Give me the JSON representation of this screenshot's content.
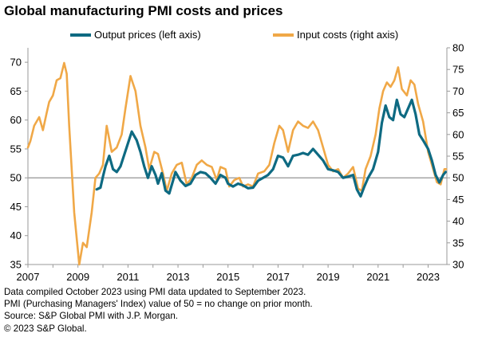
{
  "title": "Global manufacturing PMI costs and prices",
  "colors": {
    "output": "#0e6a82",
    "input": "#f0a847",
    "axis": "#9a9a9a",
    "ref": "#a6a6a6"
  },
  "legend": [
    {
      "label": "Output prices (left axis)",
      "color": "#0e6a82"
    },
    {
      "label": "Input costs (right axis)",
      "color": "#f0a847"
    }
  ],
  "chart_data": {
    "type": "line",
    "xlim": [
      2007.0,
      2023.75
    ],
    "x_ticks": [
      "2007",
      "2009",
      "2011",
      "2013",
      "2015",
      "2017",
      "2019",
      "2021",
      "2023"
    ],
    "y_left": {
      "ticks": [
        "35",
        "40",
        "45",
        "50",
        "55",
        "60",
        "65",
        "70"
      ],
      "ylim": [
        35,
        72.5
      ]
    },
    "y_right": {
      "ticks": [
        "30",
        "35",
        "40",
        "45",
        "50",
        "55",
        "60",
        "65",
        "70",
        "75",
        "80"
      ],
      "ylim": [
        30,
        80
      ]
    },
    "reference_line": 50,
    "series": [
      {
        "name": "Output prices (left axis)",
        "axis": "left",
        "color": "#0e6a82",
        "points": [
          [
            2009.75,
            48.0
          ],
          [
            2009.9,
            48.3
          ],
          [
            2010.0,
            50.2
          ],
          [
            2010.1,
            52.0
          ],
          [
            2010.25,
            53.8
          ],
          [
            2010.4,
            51.5
          ],
          [
            2010.55,
            51.0
          ],
          [
            2010.7,
            52.0
          ],
          [
            2010.85,
            54.0
          ],
          [
            2011.0,
            56.0
          ],
          [
            2011.15,
            58.0
          ],
          [
            2011.35,
            56.5
          ],
          [
            2011.5,
            54.5
          ],
          [
            2011.65,
            52.0
          ],
          [
            2011.8,
            50.0
          ],
          [
            2011.95,
            52.0
          ],
          [
            2012.1,
            50.5
          ],
          [
            2012.2,
            49.0
          ],
          [
            2012.35,
            50.8
          ],
          [
            2012.5,
            47.8
          ],
          [
            2012.65,
            47.3
          ],
          [
            2012.8,
            49.5
          ],
          [
            2012.9,
            51.0
          ],
          [
            2013.1,
            49.5
          ],
          [
            2013.3,
            48.6
          ],
          [
            2013.5,
            49.0
          ],
          [
            2013.7,
            50.5
          ],
          [
            2013.9,
            51.0
          ],
          [
            2014.1,
            50.8
          ],
          [
            2014.3,
            50.0
          ],
          [
            2014.5,
            49.0
          ],
          [
            2014.7,
            50.5
          ],
          [
            2014.9,
            50.0
          ],
          [
            2015.0,
            49.0
          ],
          [
            2015.2,
            48.5
          ],
          [
            2015.4,
            49.0
          ],
          [
            2015.6,
            48.7
          ],
          [
            2015.8,
            48.2
          ],
          [
            2016.0,
            48.3
          ],
          [
            2016.2,
            49.5
          ],
          [
            2016.4,
            50.0
          ],
          [
            2016.6,
            50.5
          ],
          [
            2016.8,
            51.5
          ],
          [
            2017.0,
            53.8
          ],
          [
            2017.2,
            53.5
          ],
          [
            2017.4,
            52.0
          ],
          [
            2017.6,
            53.8
          ],
          [
            2017.8,
            54.0
          ],
          [
            2018.0,
            54.3
          ],
          [
            2018.2,
            54.0
          ],
          [
            2018.4,
            55.0
          ],
          [
            2018.6,
            54.0
          ],
          [
            2018.8,
            53.0
          ],
          [
            2019.0,
            51.5
          ],
          [
            2019.2,
            51.3
          ],
          [
            2019.4,
            51.0
          ],
          [
            2019.6,
            50.0
          ],
          [
            2019.8,
            50.2
          ],
          [
            2020.0,
            50.5
          ],
          [
            2020.15,
            48.0
          ],
          [
            2020.3,
            46.8
          ],
          [
            2020.45,
            48.5
          ],
          [
            2020.6,
            50.0
          ],
          [
            2020.8,
            51.5
          ],
          [
            2021.0,
            54.5
          ],
          [
            2021.15,
            59.5
          ],
          [
            2021.3,
            62.5
          ],
          [
            2021.45,
            60.5
          ],
          [
            2021.6,
            60.0
          ],
          [
            2021.75,
            63.5
          ],
          [
            2021.9,
            61.0
          ],
          [
            2022.05,
            60.5
          ],
          [
            2022.2,
            62.0
          ],
          [
            2022.35,
            63.5
          ],
          [
            2022.5,
            61.0
          ],
          [
            2022.65,
            57.5
          ],
          [
            2022.8,
            56.5
          ],
          [
            2023.0,
            55.0
          ],
          [
            2023.15,
            53.0
          ],
          [
            2023.3,
            50.5
          ],
          [
            2023.45,
            49.2
          ],
          [
            2023.6,
            50.5
          ],
          [
            2023.7,
            51.0
          ]
        ]
      },
      {
        "name": "Input costs (right axis)",
        "axis": "right",
        "color": "#f0a847",
        "points": [
          [
            2007.0,
            57.0
          ],
          [
            2007.1,
            58.5
          ],
          [
            2007.25,
            62.0
          ],
          [
            2007.45,
            64.0
          ],
          [
            2007.6,
            61.0
          ],
          [
            2007.75,
            65.0
          ],
          [
            2007.85,
            67.5
          ],
          [
            2008.0,
            69.0
          ],
          [
            2008.15,
            72.5
          ],
          [
            2008.3,
            73.0
          ],
          [
            2008.45,
            76.5
          ],
          [
            2008.55,
            74.0
          ],
          [
            2008.65,
            62.0
          ],
          [
            2008.85,
            42.0
          ],
          [
            2009.05,
            30.0
          ],
          [
            2009.2,
            35.0
          ],
          [
            2009.35,
            34.0
          ],
          [
            2009.55,
            42.0
          ],
          [
            2009.7,
            50.0
          ],
          [
            2009.85,
            51.0
          ],
          [
            2010.0,
            53.0
          ],
          [
            2010.15,
            62.0
          ],
          [
            2010.35,
            56.0
          ],
          [
            2010.55,
            57.0
          ],
          [
            2010.75,
            60.0
          ],
          [
            2010.9,
            66.0
          ],
          [
            2011.1,
            73.5
          ],
          [
            2011.3,
            70.0
          ],
          [
            2011.5,
            62.0
          ],
          [
            2011.7,
            57.0
          ],
          [
            2011.85,
            52.0
          ],
          [
            2012.05,
            56.0
          ],
          [
            2012.2,
            55.5
          ],
          [
            2012.4,
            51.0
          ],
          [
            2012.55,
            47.0
          ],
          [
            2012.75,
            51.0
          ],
          [
            2012.95,
            53.0
          ],
          [
            2013.15,
            53.5
          ],
          [
            2013.35,
            48.5
          ],
          [
            2013.55,
            50.0
          ],
          [
            2013.75,
            53.0
          ],
          [
            2013.95,
            54.0
          ],
          [
            2014.15,
            53.0
          ],
          [
            2014.35,
            52.5
          ],
          [
            2014.55,
            49.5
          ],
          [
            2014.7,
            52.5
          ],
          [
            2014.9,
            52.0
          ],
          [
            2015.05,
            48.0
          ],
          [
            2015.25,
            49.5
          ],
          [
            2015.45,
            50.0
          ],
          [
            2015.6,
            48.0
          ],
          [
            2015.8,
            48.5
          ],
          [
            2016.0,
            48.0
          ],
          [
            2016.2,
            51.0
          ],
          [
            2016.45,
            51.5
          ],
          [
            2016.65,
            53.0
          ],
          [
            2016.85,
            58.0
          ],
          [
            2017.05,
            62.0
          ],
          [
            2017.2,
            61.0
          ],
          [
            2017.4,
            56.0
          ],
          [
            2017.6,
            61.0
          ],
          [
            2017.8,
            63.0
          ],
          [
            2018.0,
            62.0
          ],
          [
            2018.2,
            61.5
          ],
          [
            2018.4,
            63.0
          ],
          [
            2018.6,
            61.0
          ],
          [
            2018.8,
            57.0
          ],
          [
            2019.0,
            53.0
          ],
          [
            2019.2,
            51.5
          ],
          [
            2019.4,
            52.0
          ],
          [
            2019.6,
            50.0
          ],
          [
            2019.8,
            51.0
          ],
          [
            2020.0,
            52.5
          ],
          [
            2020.2,
            47.5
          ],
          [
            2020.35,
            47.0
          ],
          [
            2020.5,
            52.0
          ],
          [
            2020.7,
            55.0
          ],
          [
            2020.9,
            60.0
          ],
          [
            2021.05,
            66.0
          ],
          [
            2021.2,
            70.0
          ],
          [
            2021.35,
            72.0
          ],
          [
            2021.5,
            71.0
          ],
          [
            2021.65,
            72.5
          ],
          [
            2021.8,
            75.5
          ],
          [
            2021.95,
            70.5
          ],
          [
            2022.15,
            69.0
          ],
          [
            2022.3,
            72.5
          ],
          [
            2022.45,
            71.5
          ],
          [
            2022.6,
            67.0
          ],
          [
            2022.8,
            63.0
          ],
          [
            2023.0,
            56.0
          ],
          [
            2023.2,
            52.0
          ],
          [
            2023.35,
            49.0
          ],
          [
            2023.5,
            48.5
          ],
          [
            2023.65,
            52.0
          ],
          [
            2023.72,
            52.0
          ]
        ]
      }
    ]
  },
  "notes": [
    "Data compiled October 2023 using PMI data updated to September 2023.",
    "PMI (Purchasing Managers' Index) value of 50 = no change on prior month.",
    "Source: S&P Global PMI with J.P. Morgan.",
    "© 2023 S&P Global."
  ]
}
